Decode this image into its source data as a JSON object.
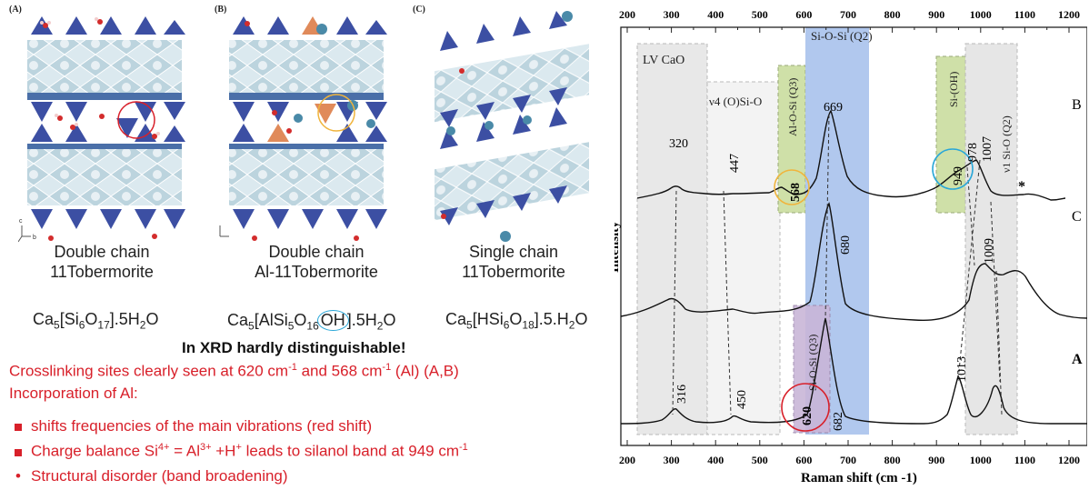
{
  "panels": [
    {
      "tag": "(A)",
      "caption_line1": "Double chain",
      "caption_line2": "11Tobermorite",
      "formula": {
        "pre": "Ca",
        "s1": "5",
        "mid": "[Si",
        "s2": "6",
        "mid2": "O",
        "s3": "17",
        "post": "].5H",
        "s4": "2",
        "end": "O"
      }
    },
    {
      "tag": "(B)",
      "caption_line1": "Double chain",
      "caption_line2": "Al-11Tobermorite",
      "formula": {
        "pre": "Ca",
        "s1": "5",
        "mid": "[AlSi",
        "s2": "5",
        "mid2": "O",
        "s3": "16",
        "circ": "OH",
        "post": "].5H",
        "s4": "2",
        "end": "O"
      }
    },
    {
      "tag": "(C)",
      "caption_line1": "Single chain",
      "caption_line2": "11Tobermorite",
      "formula": {
        "pre": "Ca",
        "s1": "5",
        "mid": "[HSi",
        "s2": "6",
        "mid2": "O",
        "s3": "18",
        "post": "].5.H",
        "s4": "2",
        "end": "O"
      }
    }
  ],
  "axis_letters": {
    "c": "c",
    "a": "a",
    "b": "b"
  },
  "xrd_note": "In XRD hardly distinguishable!",
  "notes": {
    "crosslink": {
      "a": "Crosslinking sites clearly seen at 620 cm",
      "sup1": "-1",
      "b": " and 568 cm",
      "sup2": "-1",
      "c": " (Al) (A,B)"
    },
    "incorp": "Incorporation of Al:",
    "bullets": [
      {
        "text": "shifts frequencies of the main vibrations (red shift)"
      },
      {
        "a": "Charge balance Si",
        "s1": "4+",
        "b": " = Al",
        "s2": "3+",
        "c": " +H",
        "s3": "+",
        "d": " leads to silanol band at 949 cm",
        "s4": "-1"
      },
      {
        "text": "Structural disorder (band broadening)"
      }
    ]
  },
  "chart_data": {
    "type": "line",
    "xlabel": "Raman shift (cm -1)",
    "ylabel": "Intensity",
    "xlim": [
      200,
      1200
    ],
    "x_ticks": [
      "200",
      "300",
      "400",
      "500",
      "600",
      "700",
      "800",
      "900",
      "1000",
      "1100",
      "1200"
    ],
    "series": [
      {
        "name": "B",
        "peaks": [
          {
            "x": 320,
            "label": "320"
          },
          {
            "x": 447,
            "label": "447"
          },
          {
            "x": 568,
            "label": "568"
          },
          {
            "x": 669,
            "label": "669"
          },
          {
            "x": 949,
            "label": "949"
          },
          {
            "x": 978,
            "label": "978"
          },
          {
            "x": 1007,
            "label": "1007"
          },
          {
            "x": 1085,
            "label": "*"
          }
        ]
      },
      {
        "name": "C",
        "peaks": [
          {
            "x": 680,
            "label": "680"
          },
          {
            "x": 1009,
            "label": "1009"
          }
        ]
      },
      {
        "name": "A",
        "peaks": [
          {
            "x": 316,
            "label": "316"
          },
          {
            "x": 450,
            "label": "450"
          },
          {
            "x": 620,
            "label": "620"
          },
          {
            "x": 682,
            "label": "682"
          },
          {
            "x": 1013,
            "label": "1013"
          }
        ]
      }
    ],
    "bands": [
      {
        "label": "LV CaO"
      },
      {
        "label": "ν4 (O)Si-O"
      },
      {
        "label": "Al-O-Si (Q3)"
      },
      {
        "label": "Si-O-Si (Q2)"
      },
      {
        "label": "Si-(OH)"
      },
      {
        "label": "ν1 Si-O (Q2)"
      },
      {
        "label": "Si-O-Si (Q3)"
      }
    ],
    "colors": {
      "gray_band": "#e8e8e8",
      "blue_band": "#a9c2ec",
      "green_band": "#cfe0a8",
      "purple_band": "#c9b6d8",
      "red": "#d8202a",
      "orange": "#f0b43c",
      "cyan": "#2aa7d8"
    }
  }
}
